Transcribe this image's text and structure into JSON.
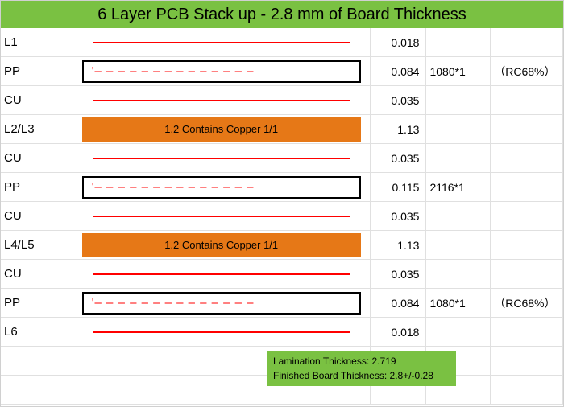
{
  "colors": {
    "header_bg": "#7ac142",
    "summary_bg": "#7ac142",
    "core_bg": "#e67817",
    "line_color": "#ff0000",
    "grid_color": "#e0e0e0",
    "box_border": "#000000",
    "text": "#000000"
  },
  "header": {
    "title": "6 Layer PCB Stack up - 2.8 mm of Board Thickness",
    "fontsize": 20
  },
  "rows": [
    {
      "type": "copper",
      "label": "L1",
      "thickness": "0.018",
      "material": "",
      "rc": ""
    },
    {
      "type": "pp",
      "label": "PP",
      "dash_text": "'– – – – – – – – – – – – – –",
      "thickness": "0.084",
      "material": "1080*1",
      "rc": "（RC68%）"
    },
    {
      "type": "copper",
      "label": "CU",
      "thickness": "0.035",
      "material": "",
      "rc": ""
    },
    {
      "type": "core",
      "label": "L2/L3",
      "core_text": "1.2 Contains Copper 1/1",
      "thickness": "1.13",
      "material": "",
      "rc": ""
    },
    {
      "type": "copper",
      "label": "CU",
      "thickness": "0.035",
      "material": "",
      "rc": ""
    },
    {
      "type": "pp",
      "label": "PP",
      "dash_text": "'– – – – – – – – – – – – – –",
      "thickness": "0.115",
      "material": "2116*1",
      "rc": ""
    },
    {
      "type": "copper",
      "label": "CU",
      "thickness": "0.035",
      "material": "",
      "rc": ""
    },
    {
      "type": "core",
      "label": "L4/L5",
      "core_text": "1.2 Contains Copper 1/1",
      "thickness": "1.13",
      "material": "",
      "rc": ""
    },
    {
      "type": "copper",
      "label": "CU",
      "thickness": "0.035",
      "material": "",
      "rc": ""
    },
    {
      "type": "pp",
      "label": "PP",
      "dash_text": "'– – – – – – – – – – – – – –",
      "thickness": "0.084",
      "material": "1080*1",
      "rc": "（RC68%）"
    },
    {
      "type": "copper",
      "label": "L6",
      "thickness": "0.018",
      "material": "",
      "rc": ""
    }
  ],
  "summary": {
    "line1": "Lamination Thickness: 2.719",
    "line2": "Finished Board Thickness: 2.8+/-0.28"
  }
}
